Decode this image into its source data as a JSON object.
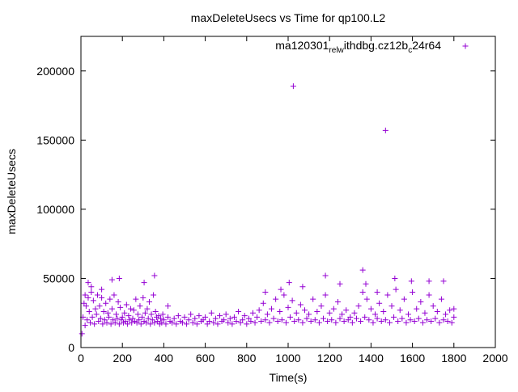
{
  "chart_data": {
    "type": "scatter",
    "title": "maxDeleteUsecs vs Time for qp100.L2",
    "xlabel": "Time(s)",
    "ylabel": "maxDeleteUsecs",
    "xlim": [
      0,
      2000
    ],
    "ylim": [
      0,
      225000
    ],
    "x_ticks": [
      0,
      200,
      400,
      600,
      800,
      1000,
      1200,
      1400,
      1600,
      1800,
      2000
    ],
    "y_ticks": [
      0,
      50000,
      100000,
      150000,
      200000
    ],
    "grid": false,
    "legend_position": "top-right",
    "marker": "plus",
    "series": [
      {
        "name": "ma120301_rel_withdbg.cz12b_c24r64",
        "legend_text": {
          "base": "ma120301",
          "sub1": "rel",
          "mid": "ithdbg.cz12b",
          "sub2": "c",
          "tail": "24r64",
          "sub_between_1": "w"
        },
        "color": "#9400d3",
        "outliers": [
          [
            1025,
            189000
          ],
          [
            1470,
            157000
          ]
        ],
        "peaks": [
          [
            20,
            38000
          ],
          [
            35,
            47000
          ],
          [
            50,
            44000
          ],
          [
            100,
            42000
          ],
          [
            150,
            49000
          ],
          [
            185,
            50000
          ],
          [
            305,
            47000
          ],
          [
            355,
            52000
          ],
          [
            420,
            30000
          ],
          [
            890,
            40000
          ],
          [
            965,
            42000
          ],
          [
            1005,
            47000
          ],
          [
            1070,
            44000
          ],
          [
            1180,
            52000
          ],
          [
            1250,
            46000
          ],
          [
            1360,
            56000
          ],
          [
            1375,
            46000
          ],
          [
            1430,
            40000
          ],
          [
            1515,
            50000
          ],
          [
            1595,
            48000
          ],
          [
            1680,
            48000
          ],
          [
            1750,
            48000
          ],
          [
            1800,
            28000
          ]
        ],
        "points": [
          [
            5,
            10000
          ],
          [
            10,
            22000
          ],
          [
            15,
            32000
          ],
          [
            20,
            16000
          ],
          [
            25,
            30000
          ],
          [
            30,
            20000
          ],
          [
            35,
            36000
          ],
          [
            40,
            26000
          ],
          [
            45,
            18000
          ],
          [
            50,
            40000
          ],
          [
            55,
            22000
          ],
          [
            60,
            34000
          ],
          [
            65,
            17000
          ],
          [
            70,
            28000
          ],
          [
            75,
            24000
          ],
          [
            80,
            38000
          ],
          [
            85,
            19000
          ],
          [
            90,
            30000
          ],
          [
            95,
            21000
          ],
          [
            100,
            36000
          ],
          [
            105,
            17000
          ],
          [
            110,
            26000
          ],
          [
            115,
            20000
          ],
          [
            120,
            32000
          ],
          [
            125,
            18000
          ],
          [
            130,
            25000
          ],
          [
            135,
            22000
          ],
          [
            140,
            35000
          ],
          [
            145,
            17000
          ],
          [
            150,
            28000
          ],
          [
            155,
            20000
          ],
          [
            160,
            38000
          ],
          [
            165,
            18000
          ],
          [
            170,
            24000
          ],
          [
            175,
            21000
          ],
          [
            180,
            33000
          ],
          [
            185,
            17000
          ],
          [
            190,
            29000
          ],
          [
            195,
            20000
          ],
          [
            200,
            22000
          ],
          [
            205,
            18000
          ],
          [
            210,
            25000
          ],
          [
            215,
            19000
          ],
          [
            220,
            31000
          ],
          [
            225,
            17000
          ],
          [
            230,
            23000
          ],
          [
            235,
            20000
          ],
          [
            240,
            28000
          ],
          [
            245,
            18000
          ],
          [
            250,
            21000
          ],
          [
            255,
            27000
          ],
          [
            260,
            19000
          ],
          [
            265,
            35000
          ],
          [
            270,
            18000
          ],
          [
            275,
            24000
          ],
          [
            280,
            20000
          ],
          [
            285,
            30000
          ],
          [
            290,
            17000
          ],
          [
            295,
            22000
          ],
          [
            300,
            36000
          ],
          [
            305,
            19000
          ],
          [
            310,
            25000
          ],
          [
            315,
            18000
          ],
          [
            320,
            28000
          ],
          [
            325,
            21000
          ],
          [
            330,
            33000
          ],
          [
            335,
            17000
          ],
          [
            340,
            24000
          ],
          [
            345,
            20000
          ],
          [
            350,
            38000
          ],
          [
            355,
            18000
          ],
          [
            360,
            26000
          ],
          [
            365,
            22000
          ],
          [
            370,
            19000
          ],
          [
            375,
            23000
          ],
          [
            380,
            17000
          ],
          [
            385,
            21000
          ],
          [
            390,
            18000
          ],
          [
            395,
            24000
          ],
          [
            400,
            20000
          ],
          [
            410,
            17000
          ],
          [
            420,
            22000
          ],
          [
            430,
            19000
          ],
          [
            440,
            18000
          ],
          [
            450,
            21000
          ],
          [
            460,
            17000
          ],
          [
            470,
            23000
          ],
          [
            480,
            19000
          ],
          [
            490,
            18000
          ],
          [
            500,
            22000
          ],
          [
            510,
            17000
          ],
          [
            520,
            20000
          ],
          [
            530,
            24000
          ],
          [
            540,
            18000
          ],
          [
            550,
            21000
          ],
          [
            560,
            17000
          ],
          [
            570,
            23000
          ],
          [
            580,
            19000
          ],
          [
            590,
            20000
          ],
          [
            600,
            22000
          ],
          [
            610,
            17000
          ],
          [
            620,
            19000
          ],
          [
            630,
            25000
          ],
          [
            640,
            18000
          ],
          [
            650,
            21000
          ],
          [
            660,
            17000
          ],
          [
            670,
            23000
          ],
          [
            680,
            19000
          ],
          [
            690,
            20000
          ],
          [
            700,
            24000
          ],
          [
            710,
            18000
          ],
          [
            720,
            21000
          ],
          [
            730,
            17000
          ],
          [
            740,
            22000
          ],
          [
            750,
            19000
          ],
          [
            760,
            26000
          ],
          [
            770,
            18000
          ],
          [
            780,
            20000
          ],
          [
            790,
            23000
          ],
          [
            800,
            17000
          ],
          [
            810,
            21000
          ],
          [
            820,
            19000
          ],
          [
            830,
            25000
          ],
          [
            840,
            18000
          ],
          [
            850,
            22000
          ],
          [
            860,
            27000
          ],
          [
            870,
            19000
          ],
          [
            880,
            32000
          ],
          [
            890,
            20000
          ],
          [
            900,
            24000
          ],
          [
            910,
            18000
          ],
          [
            920,
            28000
          ],
          [
            930,
            21000
          ],
          [
            940,
            35000
          ],
          [
            950,
            19000
          ],
          [
            960,
            26000
          ],
          [
            970,
            20000
          ],
          [
            980,
            38000
          ],
          [
            990,
            18000
          ],
          [
            1000,
            29000
          ],
          [
            1010,
            22000
          ],
          [
            1020,
            34000
          ],
          [
            1030,
            19000
          ],
          [
            1040,
            25000
          ],
          [
            1050,
            20000
          ],
          [
            1060,
            31000
          ],
          [
            1070,
            18000
          ],
          [
            1080,
            27000
          ],
          [
            1090,
            21000
          ],
          [
            1100,
            24000
          ],
          [
            1110,
            19000
          ],
          [
            1120,
            35000
          ],
          [
            1130,
            20000
          ],
          [
            1140,
            26000
          ],
          [
            1150,
            18000
          ],
          [
            1160,
            30000
          ],
          [
            1170,
            21000
          ],
          [
            1180,
            38000
          ],
          [
            1190,
            19000
          ],
          [
            1200,
            25000
          ],
          [
            1210,
            20000
          ],
          [
            1220,
            28000
          ],
          [
            1230,
            18000
          ],
          [
            1240,
            33000
          ],
          [
            1250,
            21000
          ],
          [
            1260,
            24000
          ],
          [
            1270,
            19000
          ],
          [
            1280,
            27000
          ],
          [
            1290,
            20000
          ],
          [
            1300,
            22000
          ],
          [
            1310,
            18000
          ],
          [
            1320,
            25000
          ],
          [
            1330,
            21000
          ],
          [
            1340,
            30000
          ],
          [
            1350,
            19000
          ],
          [
            1360,
            40000
          ],
          [
            1370,
            22000
          ],
          [
            1380,
            35000
          ],
          [
            1390,
            20000
          ],
          [
            1400,
            28000
          ],
          [
            1410,
            18000
          ],
          [
            1420,
            24000
          ],
          [
            1430,
            21000
          ],
          [
            1440,
            32000
          ],
          [
            1450,
            19000
          ],
          [
            1460,
            26000
          ],
          [
            1470,
            20000
          ],
          [
            1480,
            38000
          ],
          [
            1490,
            18000
          ],
          [
            1500,
            30000
          ],
          [
            1510,
            22000
          ],
          [
            1520,
            42000
          ],
          [
            1530,
            19000
          ],
          [
            1540,
            27000
          ],
          [
            1550,
            21000
          ],
          [
            1560,
            35000
          ],
          [
            1570,
            18000
          ],
          [
            1580,
            24000
          ],
          [
            1590,
            20000
          ],
          [
            1600,
            40000
          ],
          [
            1610,
            19000
          ],
          [
            1620,
            28000
          ],
          [
            1630,
            21000
          ],
          [
            1640,
            33000
          ],
          [
            1650,
            18000
          ],
          [
            1660,
            25000
          ],
          [
            1670,
            20000
          ],
          [
            1680,
            38000
          ],
          [
            1690,
            19000
          ],
          [
            1700,
            30000
          ],
          [
            1710,
            21000
          ],
          [
            1720,
            26000
          ],
          [
            1730,
            18000
          ],
          [
            1740,
            35000
          ],
          [
            1750,
            20000
          ],
          [
            1760,
            24000
          ],
          [
            1770,
            19000
          ],
          [
            1780,
            27000
          ],
          [
            1790,
            18000
          ],
          [
            1800,
            22000
          ]
        ]
      }
    ]
  }
}
